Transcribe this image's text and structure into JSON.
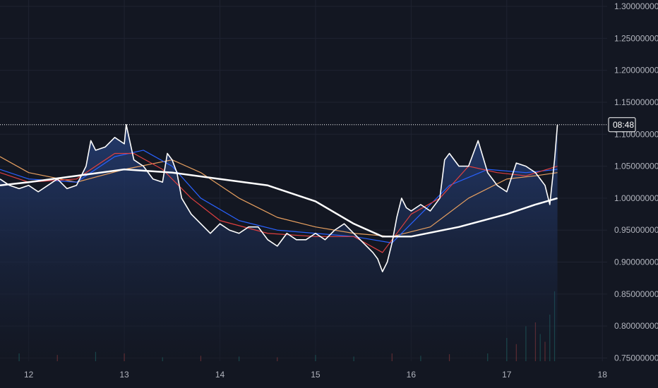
{
  "colors": {
    "background": "#131722",
    "grid": "#1f2330",
    "price_line": "#ffffff",
    "ema_fast": "#e04040",
    "ema_mid": "#2962ff",
    "ema_slow": "#e8a060",
    "ma_long": "#ffffff",
    "area_top": "#26407a",
    "area_bottom": "#131722",
    "volume_up": "#26a69a",
    "volume_down": "#ef5350",
    "axis_text": "#b2b5be",
    "badge_bg": "#131722",
    "badge_border": "#ffffff"
  },
  "last_price_label": "08:48",
  "chart_data": {
    "type": "line",
    "x_ticks": [
      "12",
      "13",
      "14",
      "15",
      "16",
      "17",
      "18"
    ],
    "y_ticks": [
      "1.30000000",
      "1.25000000",
      "1.20000000",
      "1.15000000",
      "1.10000000",
      "1.05000000",
      "1.00000000",
      "0.95000000",
      "0.90000000",
      "0.85000000",
      "0.80000000",
      "0.75000000"
    ],
    "xlim": [
      11.7,
      18.05
    ],
    "ylim": [
      0.745,
      1.31
    ],
    "last_price": 1.115,
    "grid": true,
    "series": [
      {
        "key": "price",
        "x": [
          11.7,
          11.8,
          11.9,
          12.0,
          12.1,
          12.2,
          12.3,
          12.4,
          12.5,
          12.6,
          12.65,
          12.7,
          12.8,
          12.9,
          13.0,
          13.02,
          13.1,
          13.2,
          13.3,
          13.4,
          13.45,
          13.5,
          13.55,
          13.6,
          13.7,
          13.8,
          13.9,
          14.0,
          14.1,
          14.2,
          14.3,
          14.4,
          14.5,
          14.6,
          14.7,
          14.8,
          14.9,
          15.0,
          15.1,
          15.2,
          15.3,
          15.4,
          15.5,
          15.6,
          15.65,
          15.7,
          15.75,
          15.8,
          15.85,
          15.9,
          15.95,
          16.0,
          16.1,
          16.2,
          16.3,
          16.35,
          16.4,
          16.5,
          16.6,
          16.65,
          16.7,
          16.8,
          16.9,
          17.0,
          17.1,
          17.2,
          17.3,
          17.4,
          17.45,
          17.5,
          17.53
        ],
        "y": [
          1.03,
          1.02,
          1.015,
          1.02,
          1.01,
          1.02,
          1.03,
          1.015,
          1.02,
          1.05,
          1.09,
          1.075,
          1.08,
          1.095,
          1.085,
          1.115,
          1.06,
          1.05,
          1.03,
          1.025,
          1.07,
          1.06,
          1.04,
          1.0,
          0.975,
          0.96,
          0.945,
          0.96,
          0.95,
          0.945,
          0.955,
          0.955,
          0.935,
          0.925,
          0.945,
          0.935,
          0.935,
          0.945,
          0.935,
          0.95,
          0.96,
          0.945,
          0.93,
          0.915,
          0.905,
          0.885,
          0.9,
          0.93,
          0.97,
          1.0,
          0.985,
          0.98,
          0.99,
          0.98,
          1.0,
          1.06,
          1.07,
          1.05,
          1.05,
          1.07,
          1.09,
          1.04,
          1.02,
          1.01,
          1.055,
          1.05,
          1.04,
          1.02,
          0.99,
          1.06,
          1.115
        ]
      },
      {
        "key": "ema_fast",
        "x": [
          11.7,
          12.0,
          12.5,
          12.9,
          13.1,
          13.4,
          13.7,
          14.0,
          14.5,
          15.0,
          15.4,
          15.7,
          16.0,
          16.3,
          16.6,
          16.9,
          17.2,
          17.53
        ],
        "y": [
          1.04,
          1.025,
          1.03,
          1.07,
          1.07,
          1.045,
          1.0,
          0.965,
          0.945,
          0.94,
          0.94,
          0.915,
          0.975,
          1.0,
          1.05,
          1.04,
          1.035,
          1.05
        ]
      },
      {
        "key": "ema_mid",
        "x": [
          11.7,
          12.0,
          12.5,
          12.9,
          13.2,
          13.5,
          13.8,
          14.2,
          14.6,
          15.0,
          15.4,
          15.8,
          16.1,
          16.4,
          16.8,
          17.2,
          17.53
        ],
        "y": [
          1.045,
          1.03,
          1.025,
          1.065,
          1.075,
          1.05,
          1.0,
          0.965,
          0.95,
          0.945,
          0.94,
          0.93,
          0.975,
          1.02,
          1.045,
          1.04,
          1.045
        ]
      },
      {
        "key": "ema_slow",
        "x": [
          11.7,
          12.0,
          12.5,
          13.0,
          13.5,
          13.8,
          14.2,
          14.6,
          15.0,
          15.4,
          15.8,
          16.2,
          16.6,
          17.0,
          17.3,
          17.53
        ],
        "y": [
          1.065,
          1.04,
          1.025,
          1.045,
          1.06,
          1.04,
          1.0,
          0.97,
          0.955,
          0.945,
          0.94,
          0.955,
          1.0,
          1.03,
          1.035,
          1.04
        ]
      },
      {
        "key": "ma_long",
        "x": [
          11.7,
          12.0,
          12.5,
          13.0,
          13.5,
          14.0,
          14.5,
          15.0,
          15.4,
          15.7,
          16.0,
          16.5,
          17.0,
          17.3,
          17.53
        ],
        "y": [
          1.02,
          1.025,
          1.035,
          1.045,
          1.04,
          1.03,
          1.02,
          0.995,
          0.96,
          0.94,
          0.94,
          0.955,
          0.975,
          0.99,
          1.0
        ]
      }
    ],
    "volume": {
      "x": [
        11.9,
        12.3,
        12.7,
        13.0,
        13.4,
        13.8,
        14.2,
        14.6,
        15.0,
        15.4,
        15.8,
        16.1,
        16.4,
        16.8,
        17.0,
        17.1,
        17.2,
        17.3,
        17.35,
        17.4,
        17.45,
        17.5
      ],
      "up": [
        true,
        false,
        true,
        false,
        true,
        false,
        true,
        false,
        true,
        true,
        false,
        true,
        false,
        true,
        true,
        false,
        true,
        false,
        true,
        false,
        true,
        true
      ],
      "scale": [
        0.1,
        0.08,
        0.12,
        0.1,
        0.05,
        0.07,
        0.06,
        0.05,
        0.08,
        0.06,
        0.1,
        0.07,
        0.09,
        0.1,
        0.3,
        0.22,
        0.45,
        0.5,
        0.35,
        0.25,
        0.6,
        0.9
      ]
    }
  }
}
